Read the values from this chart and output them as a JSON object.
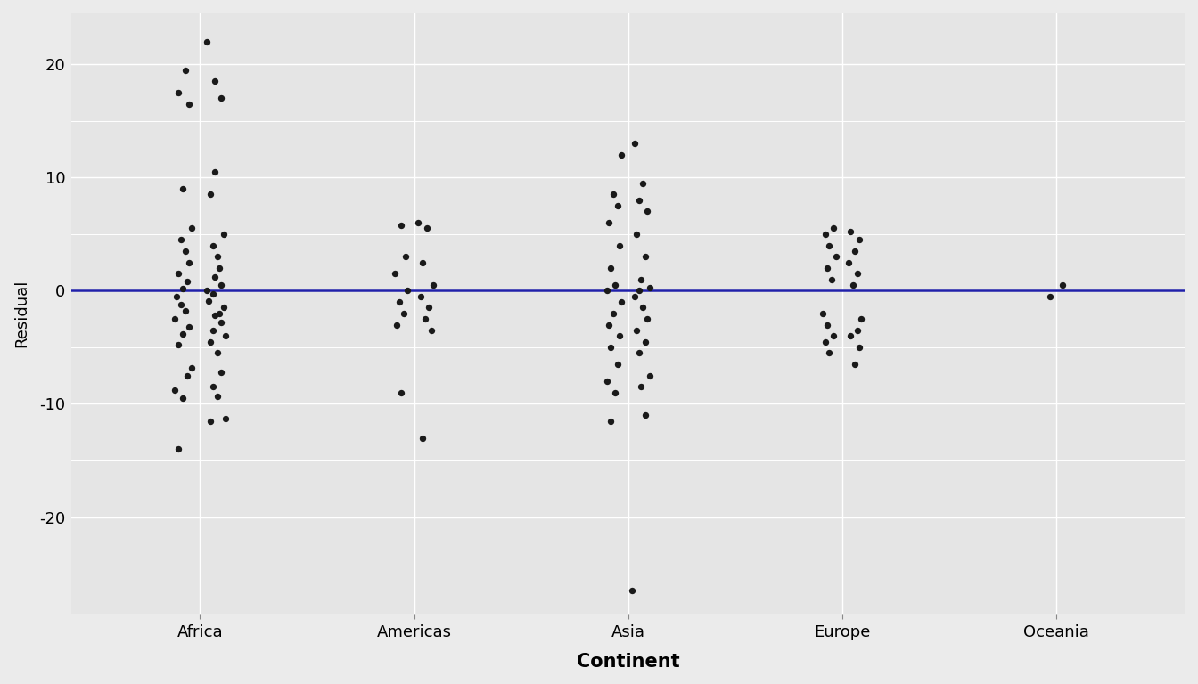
{
  "continents": [
    "Africa",
    "Americas",
    "Asia",
    "Europe",
    "Oceania"
  ],
  "continent_positions": [
    1,
    2,
    3,
    4,
    5
  ],
  "background_color": "#EBEBEB",
  "panel_background": "#E5E5E5",
  "grid_color": "#FFFFFF",
  "point_color": "#1A1A1A",
  "line_color": "#2020AA",
  "xlabel": "Continent",
  "ylabel": "Residual",
  "ylim": [
    -28.5,
    24.5
  ],
  "xlim": [
    0.4,
    5.6
  ],
  "yticks": [
    -20,
    -10,
    0,
    10,
    20
  ],
  "xlabel_fontsize": 15,
  "ylabel_fontsize": 13,
  "tick_fontsize": 13,
  "point_size": 28,
  "Africa": [
    -14.0,
    -11.5,
    -11.3,
    -9.5,
    -9.3,
    -8.8,
    -8.5,
    -7.5,
    -7.2,
    -6.8,
    -5.5,
    -4.8,
    -4.5,
    -4.0,
    -3.8,
    -3.5,
    -3.2,
    -2.8,
    -2.5,
    -2.2,
    -2.0,
    -1.8,
    -1.5,
    -1.2,
    -0.9,
    -0.5,
    -0.3,
    0.0,
    0.2,
    0.5,
    0.8,
    1.2,
    1.5,
    2.0,
    2.5,
    3.0,
    3.5,
    4.0,
    4.5,
    5.0,
    5.5,
    8.5,
    9.0,
    10.5,
    16.5,
    17.0,
    17.5,
    18.5,
    19.5,
    22.0
  ],
  "Americas": [
    -13.0,
    -9.0,
    -3.5,
    -3.0,
    -2.5,
    -2.0,
    -1.5,
    -1.0,
    -0.5,
    0.0,
    0.5,
    1.5,
    2.5,
    3.0,
    5.5,
    5.8,
    6.0
  ],
  "Asia": [
    -26.5,
    -11.5,
    -11.0,
    -9.0,
    -8.5,
    -8.0,
    -7.5,
    -6.5,
    -5.5,
    -5.0,
    -4.5,
    -4.0,
    -3.5,
    -3.0,
    -2.5,
    -2.0,
    -1.5,
    -1.0,
    -0.5,
    0.0,
    0.0,
    0.3,
    0.5,
    1.0,
    2.0,
    3.0,
    4.0,
    5.0,
    6.0,
    7.0,
    7.5,
    8.0,
    8.5,
    9.5,
    12.0,
    13.0
  ],
  "Europe": [
    -6.5,
    -5.5,
    -5.0,
    -4.5,
    -4.0,
    -4.0,
    -3.5,
    -3.0,
    -2.5,
    -2.0,
    0.5,
    1.0,
    1.5,
    2.0,
    2.5,
    3.0,
    3.5,
    4.0,
    4.5,
    5.0,
    5.2,
    5.5
  ],
  "Oceania": [
    -0.5,
    0.5
  ],
  "jitter_amounts": {
    "Africa": [
      -0.1,
      0.05,
      0.12,
      -0.08,
      0.08,
      -0.12,
      0.06,
      -0.06,
      0.1,
      -0.04,
      0.08,
      -0.1,
      0.05,
      0.12,
      -0.08,
      0.06,
      -0.05,
      0.1,
      -0.12,
      0.07,
      0.09,
      -0.07,
      0.11,
      -0.09,
      0.04,
      -0.11,
      0.06,
      0.03,
      -0.08,
      0.1,
      -0.06,
      0.07,
      -0.1,
      0.09,
      -0.05,
      0.08,
      -0.07,
      0.06,
      -0.09,
      0.11,
      -0.04,
      0.05,
      -0.08,
      0.07,
      -0.05,
      0.1,
      -0.1,
      0.07,
      -0.07,
      0.03
    ],
    "Americas": [
      0.04,
      -0.06,
      0.08,
      -0.08,
      0.05,
      -0.05,
      0.07,
      -0.07,
      0.03,
      -0.03,
      0.09,
      -0.09,
      0.04,
      -0.04,
      0.06,
      -0.06,
      0.02
    ],
    "Asia": [
      0.02,
      -0.08,
      0.08,
      -0.06,
      0.06,
      -0.1,
      0.1,
      -0.05,
      0.05,
      -0.08,
      0.08,
      -0.04,
      0.04,
      -0.09,
      0.09,
      -0.07,
      0.07,
      -0.03,
      0.03,
      0.05,
      -0.1,
      0.1,
      -0.06,
      0.06,
      -0.08,
      0.08,
      -0.04,
      0.04,
      -0.09,
      0.09,
      -0.05,
      0.05,
      -0.07,
      0.07,
      -0.03,
      0.03
    ],
    "Europe": [
      0.06,
      -0.06,
      0.08,
      -0.08,
      0.04,
      -0.04,
      0.07,
      -0.07,
      0.09,
      -0.09,
      0.05,
      -0.05,
      0.07,
      -0.07,
      0.03,
      -0.03,
      0.06,
      -0.06,
      0.08,
      -0.08,
      0.04,
      -0.04
    ],
    "Oceania": [
      -0.03,
      0.03
    ]
  }
}
